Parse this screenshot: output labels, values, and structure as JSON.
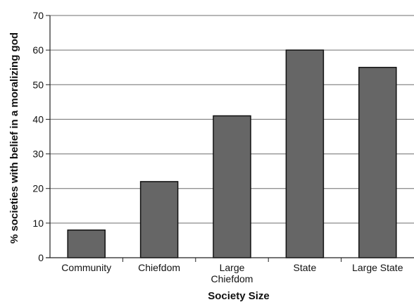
{
  "chart_data": {
    "type": "bar",
    "categories": [
      "Community",
      "Chiefdom",
      "Large Chiefdom",
      "State",
      "Large State"
    ],
    "category_labels": [
      [
        "Community"
      ],
      [
        "Chiefdom"
      ],
      [
        "Large",
        "Chiefdom"
      ],
      [
        "State"
      ],
      [
        "Large State"
      ]
    ],
    "values": [
      8,
      22,
      41,
      60,
      55
    ],
    "xlabel": "Society Size",
    "ylabel": "% societies with belief in a moralizing god",
    "ylim": [
      0,
      70
    ],
    "yticks": [
      0,
      10,
      20,
      30,
      40,
      50,
      60,
      70
    ],
    "grid": true,
    "bar_color": "#666666",
    "bar_edge_color": "#111111",
    "grid_color": "#6f6f6f",
    "legend": false
  }
}
